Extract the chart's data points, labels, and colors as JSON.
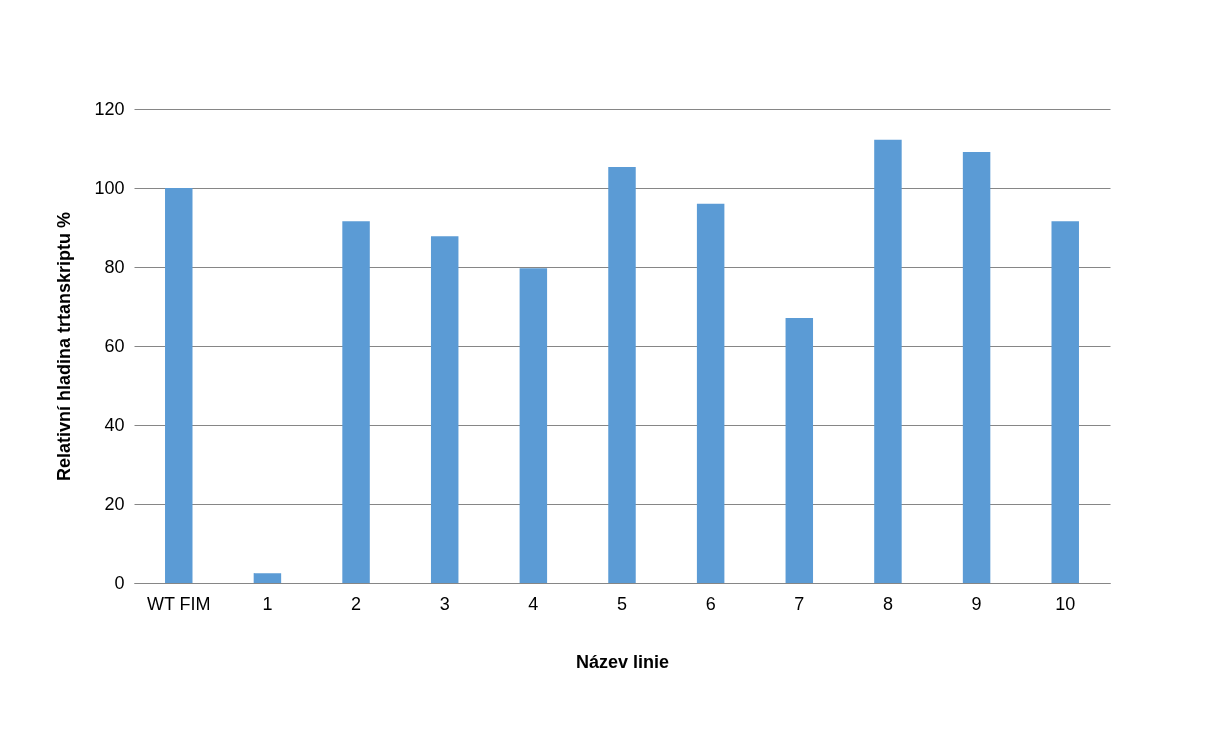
{
  "chart_data": {
    "type": "bar",
    "xlabel": "Název linie",
    "ylabel": "Relativní hladina trtanskriptu %",
    "categories": [
      "WT FIM",
      "1",
      "2",
      "3",
      "4",
      "5",
      "6",
      "7",
      "8",
      "9",
      "10"
    ],
    "values": [
      100,
      2.5,
      91.6,
      87.8,
      79.7,
      105.3,
      96,
      67.1,
      112.2,
      109.1,
      91.6
    ],
    "color": "#5b9bd5",
    "ylim": [
      0,
      120
    ],
    "yticks": [
      0,
      20,
      40,
      60,
      80,
      100,
      120
    ],
    "grid": "y",
    "legend": false
  }
}
